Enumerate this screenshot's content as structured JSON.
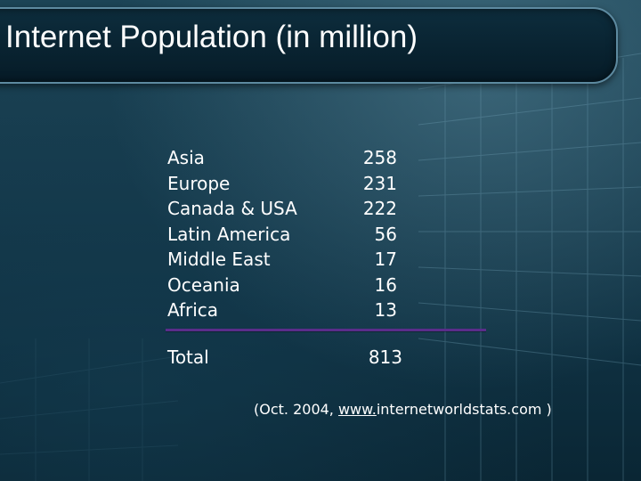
{
  "slide": {
    "title": "Internet Population (in million)"
  },
  "table": {
    "rows": [
      {
        "region": "Asia",
        "value": "258"
      },
      {
        "region": "Europe",
        "value": "231"
      },
      {
        "region": "Canada & USA",
        "value": "222"
      },
      {
        "region": "Latin America",
        "value": "56"
      },
      {
        "region": "Middle East",
        "value": "17"
      },
      {
        "region": "Oceania",
        "value": "16"
      },
      {
        "region": "Africa",
        "value": "13"
      }
    ],
    "total_label": "Total",
    "total_value": "813"
  },
  "source": {
    "prefix": "(Oct. 2004, ",
    "link_part": "www.",
    "domain": "internetworldstats.com",
    "suffix": " )"
  },
  "colors": {
    "background": "#163b4d",
    "title_bar": "#0d2d3d",
    "divider": "#5a2d8a",
    "text": "#ffffff"
  }
}
